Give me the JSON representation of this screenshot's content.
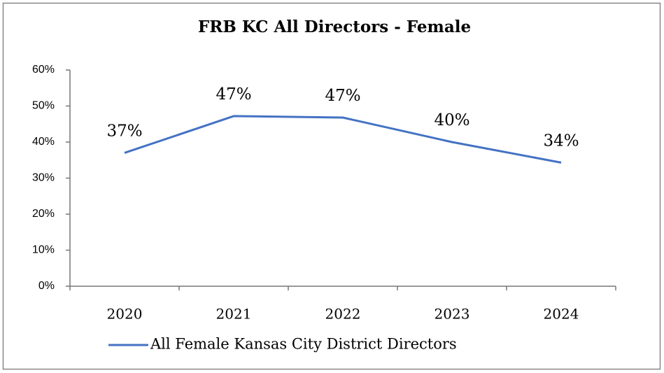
{
  "chart_data": {
    "type": "line",
    "title": "FRB KC All Directors  - Female",
    "categories": [
      "2020",
      "2021",
      "2022",
      "2023",
      "2024"
    ],
    "series": [
      {
        "name": "All Female Kansas City District Directors",
        "color": "#4472c4",
        "values": [
          37,
          47.2,
          46.8,
          40,
          34.3
        ],
        "value_labels": [
          "37%",
          "47%",
          "47%",
          "40%",
          "34%"
        ]
      }
    ],
    "ylim": [
      0,
      60
    ],
    "yticks": [
      {
        "value": 0,
        "label": "0%"
      },
      {
        "value": 10,
        "label": "10%"
      },
      {
        "value": 20,
        "label": "20%"
      },
      {
        "value": 30,
        "label": "30%"
      },
      {
        "value": 40,
        "label": "40%"
      },
      {
        "value": 50,
        "label": "50%"
      },
      {
        "value": 60,
        "label": "60%"
      }
    ],
    "grid": false,
    "legend": "bottom"
  }
}
